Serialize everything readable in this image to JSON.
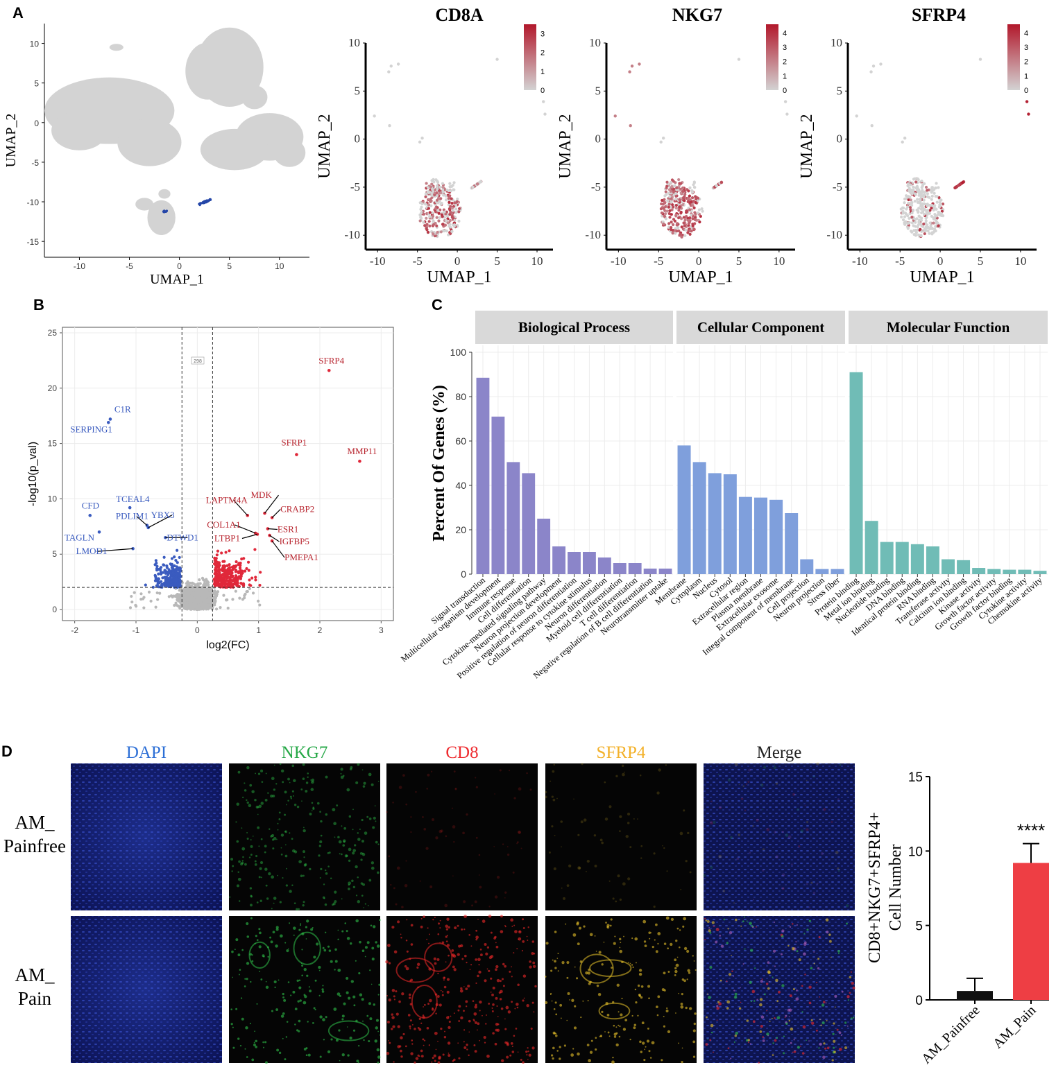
{
  "panel_letters": {
    "a": "A",
    "b": "B",
    "c": "C",
    "d": "D"
  },
  "chart_data": [
    {
      "id": "A-overview",
      "type": "scatter",
      "title": "",
      "xlabel": "UMAP_1",
      "ylabel": "UMAP_2",
      "xticks": [
        -10,
        -5,
        0,
        5,
        10
      ],
      "yticks": [
        -15,
        -10,
        -5,
        0,
        5,
        10
      ],
      "xlim": [
        -13.5,
        13
      ],
      "ylim": [
        -17,
        12.5
      ],
      "colors": {
        "background": "#d3d3d3",
        "highlight": "#2546a8"
      }
    },
    {
      "id": "A-CD8A",
      "type": "scatter",
      "title": "CD8A",
      "xlabel": "UMAP_1",
      "ylabel": "UMAP_2",
      "xticks": [
        -10,
        -5,
        0,
        5,
        10
      ],
      "yticks": [
        -10,
        -5,
        0,
        5,
        10
      ],
      "xlim": [
        -11.5,
        12
      ],
      "ylim": [
        -11.5,
        10
      ],
      "colorbar_ticks": [
        0,
        1,
        2,
        3
      ],
      "colorbar_max": 3.5,
      "colors": {
        "low": "#d3d3d3",
        "high": "#b2182b"
      }
    },
    {
      "id": "A-NKG7",
      "type": "scatter",
      "title": "NKG7",
      "xlabel": "UMAP_1",
      "ylabel": "UMAP_2",
      "xticks": [
        -10,
        -5,
        0,
        5,
        10
      ],
      "yticks": [
        -10,
        -5,
        0,
        5,
        10
      ],
      "xlim": [
        -11.5,
        12
      ],
      "ylim": [
        -11.5,
        10
      ],
      "colorbar_ticks": [
        0,
        1,
        2,
        3,
        4
      ],
      "colorbar_max": 4.6,
      "colors": {
        "low": "#d3d3d3",
        "high": "#b2182b"
      }
    },
    {
      "id": "A-SFRP4",
      "type": "scatter",
      "title": "SFRP4",
      "xlabel": "UMAP_1",
      "ylabel": "UMAP_2",
      "xticks": [
        -10,
        -5,
        0,
        5,
        10
      ],
      "yticks": [
        -10,
        -5,
        0,
        5,
        10
      ],
      "xlim": [
        -11.5,
        12
      ],
      "ylim": [
        -11.5,
        10
      ],
      "colorbar_ticks": [
        0,
        1,
        2,
        3,
        4
      ],
      "colorbar_max": 4.6,
      "colors": {
        "low": "#d3d3d3",
        "high": "#b2182b"
      }
    },
    {
      "id": "B-volcano",
      "type": "scatter",
      "title": "",
      "xlabel": "log2(FC)",
      "ylabel": "-log10(p_val)",
      "xticks": [
        -2,
        -1,
        0,
        1,
        2,
        3
      ],
      "yticks": [
        0,
        5,
        10,
        15,
        20,
        25
      ],
      "xlim": [
        -2.2,
        3.2
      ],
      "ylim": [
        -1,
        25.5
      ],
      "thresholds": {
        "x": [
          -0.25,
          0.25
        ],
        "y": 2
      },
      "box_label": "298",
      "colors": {
        "up": "#e0283a",
        "down": "#3a5bbf",
        "ns": "#b8b8b8"
      },
      "up_genes": [
        {
          "name": "SFRP4",
          "x": 2.15,
          "y": 21.6
        },
        {
          "name": "SFRP1",
          "x": 1.62,
          "y": 14.0
        },
        {
          "name": "MMP11",
          "x": 2.65,
          "y": 13.4
        },
        {
          "name": "LAPTM4A",
          "x": 0.82,
          "y": 8.5
        },
        {
          "name": "MDK",
          "x": 1.1,
          "y": 8.7
        },
        {
          "name": "CRABP2",
          "x": 1.22,
          "y": 8.3
        },
        {
          "name": "ESR1",
          "x": 1.15,
          "y": 7.3
        },
        {
          "name": "COL1A1",
          "x": 0.95,
          "y": 6.9
        },
        {
          "name": "LTBP1",
          "x": 0.98,
          "y": 6.8
        },
        {
          "name": "IGFBP5",
          "x": 1.18,
          "y": 6.7
        },
        {
          "name": "PMEPA1",
          "x": 1.22,
          "y": 6.2
        }
      ],
      "down_genes": [
        {
          "name": "C1R",
          "x": -1.42,
          "y": 17.2
        },
        {
          "name": "SERPING1",
          "x": -1.45,
          "y": 16.9
        },
        {
          "name": "TCEAL4",
          "x": -1.1,
          "y": 9.2
        },
        {
          "name": "CFD",
          "x": -1.75,
          "y": 8.5
        },
        {
          "name": "PDLIM1",
          "x": -0.82,
          "y": 7.6
        },
        {
          "name": "YBX3",
          "x": -0.8,
          "y": 7.4
        },
        {
          "name": "TAGLN",
          "x": -1.6,
          "y": 7.0
        },
        {
          "name": "DTWD1",
          "x": -0.52,
          "y": 6.5
        },
        {
          "name": "LMOD1",
          "x": -1.05,
          "y": 5.5
        }
      ]
    },
    {
      "id": "C-GO",
      "type": "bar",
      "ylabel": "Percent Of Genes (%)",
      "yticks": [
        0,
        20,
        40,
        60,
        80,
        100
      ],
      "ylim": [
        0,
        100
      ],
      "facets": [
        {
          "name": "Biological Process",
          "color": "#8b85c9",
          "categories": [
            "Signal transduction",
            "Multicellular organism development",
            "Immune response",
            "Cell differentiation",
            "Cytokine-mediated signaling pathway",
            "Neuron projection development",
            "Positive regulation of neuron differentiation",
            "Cellular response to cytokine stimulus",
            "Neuron differentiation",
            "Myeloid cell differentiation",
            "T cell differentiation",
            "Negative regulation of B cell differentiation",
            "Neurotransmitter uptake"
          ],
          "values": [
            88.5,
            71,
            50.5,
            45.5,
            25,
            12.5,
            10,
            10,
            7.5,
            5,
            5,
            2.5,
            2.5
          ]
        },
        {
          "name": "Cellular Component",
          "color": "#7f9fdc",
          "categories": [
            "Membrane",
            "Cytoplasm",
            "Nucleus",
            "Cytosol",
            "Extracellular region",
            "Plasma membrane",
            "Extracellular exosome",
            "Integral component of membrane",
            "Cell projection",
            "Neuron projection",
            "Stress fiber"
          ],
          "values": [
            58,
            50.5,
            45.5,
            45,
            34.8,
            34.5,
            33.5,
            27.5,
            6.7,
            2.3,
            2.3
          ]
        },
        {
          "name": "Molecular Function",
          "color": "#70bcb6",
          "categories": [
            "Protein binding",
            "Metal ion binding",
            "Nucleotide binding",
            "DNA binding",
            "Identical protein binding",
            "RNA binding",
            "Transferase activity",
            "Calcium ion binding",
            "Kinase activity",
            "Growth factor activity",
            "Growth factor binding",
            "Cytokine activity",
            "Chemokine activity"
          ],
          "values": [
            91,
            24,
            14.5,
            14.5,
            13.5,
            12.5,
            6.7,
            6.3,
            2.8,
            2.3,
            2.0,
            2.0,
            1.5
          ]
        }
      ]
    },
    {
      "id": "D-bar",
      "type": "bar",
      "categories": [
        "AM_Painfree",
        "AM_Pain"
      ],
      "values": [
        0.6,
        9.2
      ],
      "errors": [
        0.85,
        1.3
      ],
      "ylabel_lines": [
        "CD8+NKG7+SFRP4+",
        "Cell  Number"
      ],
      "yticks": [
        0,
        5,
        10,
        15
      ],
      "ylim": [
        0,
        15
      ],
      "significance": "****",
      "colors": [
        "#111111",
        "#ee3e44"
      ]
    }
  ],
  "panel_d": {
    "channels": [
      {
        "label": "DAPI",
        "color": "#2d6fd6"
      },
      {
        "label": "NKG7",
        "color": "#26a847"
      },
      {
        "label": "CD8",
        "color": "#ee2b2f"
      },
      {
        "label": "SFRP4",
        "color": "#f3b12a"
      },
      {
        "label": "Merge",
        "color": "#222222"
      }
    ],
    "rows": [
      {
        "line1": "AM_",
        "line2": "Painfree"
      },
      {
        "line1": "AM_",
        "line2": "Pain"
      }
    ]
  }
}
